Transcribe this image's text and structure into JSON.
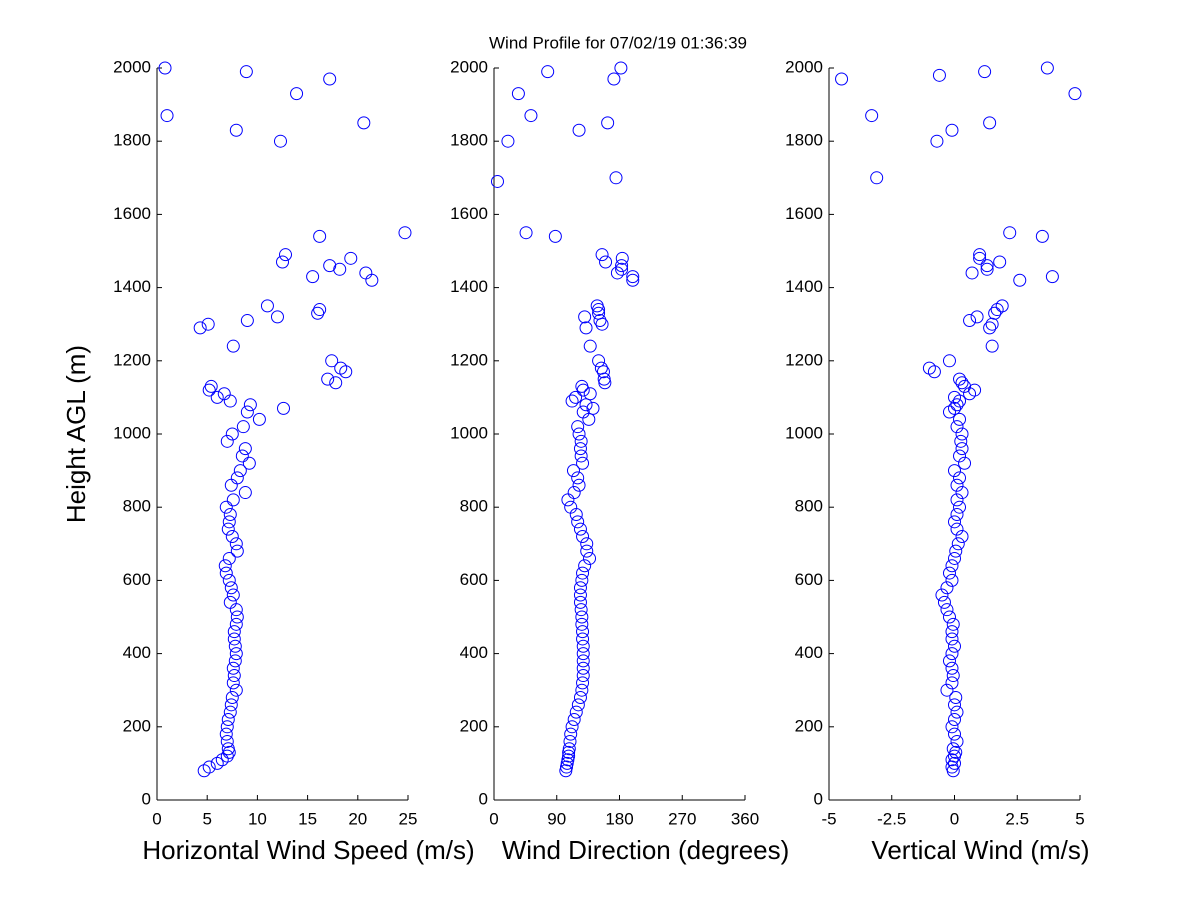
{
  "title": "Wind Profile for  07/02/19 01:36:39",
  "chart_data": [
    {
      "type": "scatter",
      "xlabel": "Horizontal Wind Speed (m/s)",
      "ylabel": "Height AGL (m)",
      "color": "#0000ff",
      "xlim": [
        0,
        25
      ],
      "xticks": [
        0,
        5,
        10,
        15,
        20,
        25
      ],
      "ylim": [
        0,
        2000
      ],
      "yticks": [
        0,
        200,
        400,
        600,
        800,
        1000,
        1200,
        1400,
        1600,
        1800,
        2000
      ],
      "x": [
        4.7,
        5.2,
        6,
        6.5,
        7,
        7.2,
        7.1,
        7,
        6.9,
        7,
        7.1,
        7.3,
        7.4,
        7.5,
        7.9,
        7.6,
        7.7,
        7.6,
        7.8,
        7.9,
        7.8,
        7.7,
        7.7,
        7.9,
        8,
        7.9,
        7.3,
        7.6,
        7.4,
        7.2,
        6.9,
        6.8,
        7.2,
        8,
        7.9,
        7.5,
        7.1,
        7.2,
        7.3,
        6.9,
        7.6,
        8.8,
        7.4,
        8,
        8.3,
        9.2,
        8.5,
        8.8,
        7,
        7.5,
        8.6,
        10.2,
        9,
        12.6,
        9.3,
        7.3,
        6,
        6.7,
        5.2,
        5.4,
        17.8,
        17,
        18.8,
        18.3,
        17.4,
        7.6,
        4.3,
        5.1,
        9,
        12,
        16,
        16.2,
        11,
        21.4,
        15.5,
        20.8,
        18.2,
        17.2,
        12.5,
        19.3,
        12.8,
        16.2,
        24.7,
        12.3,
        7.9,
        20.6,
        1,
        13.9,
        17.2,
        8.9,
        0.8
      ],
      "y": [
        80,
        90,
        100,
        110,
        120,
        130,
        140,
        160,
        180,
        200,
        220,
        240,
        260,
        280,
        300,
        320,
        340,
        360,
        380,
        400,
        420,
        440,
        460,
        480,
        500,
        520,
        540,
        560,
        580,
        600,
        620,
        640,
        660,
        680,
        700,
        720,
        740,
        760,
        780,
        800,
        820,
        840,
        860,
        880,
        900,
        920,
        940,
        960,
        980,
        1000,
        1020,
        1040,
        1060,
        1070,
        1080,
        1090,
        1100,
        1110,
        1120,
        1130,
        1140,
        1150,
        1170,
        1180,
        1200,
        1240,
        1290,
        1300,
        1310,
        1320,
        1330,
        1340,
        1350,
        1420,
        1430,
        1440,
        1450,
        1460,
        1470,
        1480,
        1490,
        1540,
        1550,
        1800,
        1830,
        1850,
        1870,
        1930,
        1970,
        1990,
        2000
      ]
    },
    {
      "type": "scatter",
      "xlabel": "Wind Direction (degrees)",
      "color": "#0000ff",
      "xlim": [
        0,
        360
      ],
      "xticks": [
        0,
        90,
        180,
        270,
        360
      ],
      "ylim": [
        0,
        2000
      ],
      "yticks": [
        0,
        200,
        400,
        600,
        800,
        1000,
        1200,
        1400,
        1600,
        1800,
        2000
      ],
      "x": [
        103,
        104,
        105,
        106,
        107,
        107,
        108,
        109,
        110,
        112,
        115,
        118,
        121,
        124,
        126,
        127,
        128,
        128,
        128,
        128,
        128,
        127,
        127,
        126,
        126,
        125,
        124,
        124,
        124,
        126,
        127,
        130,
        137,
        133,
        133,
        127,
        124,
        120,
        118,
        110,
        106,
        115,
        122,
        120,
        114,
        127,
        125,
        124,
        125,
        122,
        120,
        136,
        128,
        142,
        132,
        112,
        117,
        138,
        128,
        126,
        159,
        158,
        157,
        154,
        150,
        138,
        132,
        155,
        152,
        130,
        150,
        150,
        148,
        199,
        199,
        177,
        183,
        183,
        160,
        184,
        155,
        88,
        46,
        5,
        175,
        20,
        122,
        163,
        53,
        35,
        172,
        77,
        182
      ],
      "y": [
        80,
        90,
        100,
        110,
        120,
        130,
        140,
        160,
        180,
        200,
        220,
        240,
        260,
        280,
        300,
        320,
        340,
        360,
        380,
        400,
        420,
        440,
        460,
        480,
        500,
        520,
        540,
        560,
        580,
        600,
        620,
        640,
        660,
        680,
        700,
        720,
        740,
        760,
        780,
        800,
        820,
        840,
        860,
        880,
        900,
        920,
        940,
        960,
        980,
        1000,
        1020,
        1040,
        1060,
        1070,
        1080,
        1090,
        1100,
        1110,
        1120,
        1130,
        1140,
        1150,
        1170,
        1180,
        1200,
        1240,
        1290,
        1300,
        1310,
        1320,
        1330,
        1340,
        1350,
        1420,
        1430,
        1440,
        1450,
        1460,
        1470,
        1480,
        1490,
        1540,
        1550,
        1690,
        1700,
        1800,
        1830,
        1850,
        1870,
        1930,
        1970,
        1990,
        2000
      ]
    },
    {
      "type": "scatter",
      "xlabel": "Vertical Wind (m/s)",
      "color": "#0000ff",
      "xlim": [
        -5,
        5
      ],
      "xticks": [
        -5,
        -2.5,
        0,
        2.5,
        5
      ],
      "ylim": [
        0,
        2000
      ],
      "yticks": [
        0,
        200,
        400,
        600,
        800,
        1000,
        1200,
        1400,
        1600,
        1800,
        2000
      ],
      "x": [
        -0.05,
        -0.1,
        0,
        -0.1,
        0,
        0.05,
        -0.05,
        0.1,
        0,
        -0.1,
        0,
        0.1,
        0,
        0.05,
        -0.3,
        -0.1,
        -0.05,
        -0.1,
        -0.2,
        -0.1,
        0,
        -0.1,
        -0.1,
        -0.05,
        -0.2,
        -0.3,
        -0.4,
        -0.5,
        -0.3,
        -0.1,
        -0.2,
        -0.1,
        0,
        0.05,
        0.15,
        0.3,
        0.1,
        0,
        0.1,
        0.2,
        0.1,
        0.3,
        0.1,
        0.2,
        0,
        0.4,
        0.2,
        0.3,
        0.25,
        0.3,
        0.1,
        0.2,
        -0.2,
        0,
        0.1,
        0.2,
        0,
        0.6,
        0.8,
        0.4,
        0.3,
        0.2,
        -0.8,
        -1,
        -0.2,
        1.5,
        1.4,
        1.5,
        0.6,
        0.9,
        1.6,
        1.7,
        1.9,
        2.6,
        3.9,
        0.7,
        1.3,
        1.3,
        1.8,
        1,
        1,
        3.5,
        2.2,
        -3.1,
        -0.7,
        -0.1,
        1.4,
        -3.3,
        4.8,
        -4.5,
        -0.6,
        1.2,
        3.7
      ],
      "y": [
        80,
        90,
        100,
        110,
        120,
        130,
        140,
        160,
        180,
        200,
        220,
        240,
        260,
        280,
        300,
        320,
        340,
        360,
        380,
        400,
        420,
        440,
        460,
        480,
        500,
        520,
        540,
        560,
        580,
        600,
        620,
        640,
        660,
        680,
        700,
        720,
        740,
        760,
        780,
        800,
        820,
        840,
        860,
        880,
        900,
        920,
        940,
        960,
        980,
        1000,
        1020,
        1040,
        1060,
        1070,
        1080,
        1090,
        1100,
        1110,
        1120,
        1130,
        1140,
        1150,
        1170,
        1180,
        1200,
        1240,
        1290,
        1300,
        1310,
        1320,
        1330,
        1340,
        1350,
        1420,
        1430,
        1440,
        1450,
        1460,
        1470,
        1480,
        1490,
        1540,
        1550,
        1700,
        1800,
        1830,
        1850,
        1870,
        1930,
        1970,
        1980,
        1990,
        2000
      ]
    }
  ]
}
